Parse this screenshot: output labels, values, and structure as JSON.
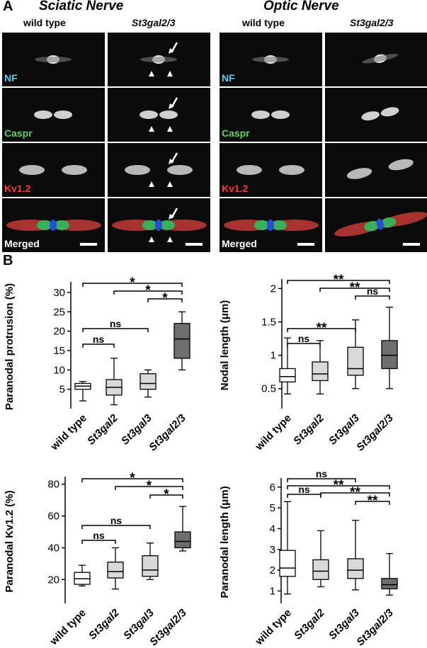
{
  "panel_a": {
    "letter": "A",
    "sciatic_title": "Sciatic Nerve",
    "optic_title": "Optic Nerve",
    "columns": [
      "wild type",
      "St3gal2/3",
      "wild type",
      "St3gal2/3"
    ],
    "channels": [
      {
        "label": "NF",
        "color": "#5ec8ee"
      },
      {
        "label": "Caspr",
        "color": "#5fd35f"
      },
      {
        "label": "Kv1.2",
        "color": "#ff3b2f"
      },
      {
        "label": "Merged",
        "color": "#ffffff"
      }
    ]
  },
  "panel_b": {
    "letter": "B"
  },
  "chart_data": [
    {
      "type": "box",
      "ylabel": "Paranodal protrusion (%)",
      "ylim": [
        0,
        32
      ],
      "yticks": [
        5,
        10,
        15,
        20,
        25,
        30
      ],
      "categories": [
        "wild type",
        "St3gal2",
        "St3gal3",
        "St3gal2/3"
      ],
      "fills": [
        "#ffffff",
        "#d9d9d9",
        "#d9d9d9",
        "#6e6e6e"
      ],
      "boxes": [
        {
          "min": 2,
          "q1": 5,
          "median": 5.8,
          "q3": 6.5,
          "max": 7
        },
        {
          "min": 1,
          "q1": 3.5,
          "median": 5.5,
          "q3": 7.5,
          "max": 13
        },
        {
          "min": 3,
          "q1": 5,
          "median": 6.5,
          "q3": 9,
          "max": 10
        },
        {
          "min": 10,
          "q1": 13,
          "median": 18,
          "q3": 22,
          "max": 25
        }
      ],
      "comparisons": [
        {
          "from": 0,
          "to": 3,
          "label": "*"
        },
        {
          "from": 1,
          "to": 3,
          "label": "*"
        },
        {
          "from": 2,
          "to": 3,
          "label": "*"
        },
        {
          "from": 0,
          "to": 2,
          "label": "ns"
        },
        {
          "from": 0,
          "to": 1,
          "label": "ns"
        }
      ]
    },
    {
      "type": "box",
      "ylabel": "Nodal length (μm)",
      "ylim": [
        0.2,
        2.1
      ],
      "yticks": [
        0.5,
        1,
        1.5,
        2
      ],
      "categories": [
        "wild type",
        "St3gal2",
        "St3gal3",
        "St3gal2/3"
      ],
      "fills": [
        "#ffffff",
        "#d9d9d9",
        "#d9d9d9",
        "#6e6e6e"
      ],
      "boxes": [
        {
          "min": 0.42,
          "q1": 0.6,
          "median": 0.68,
          "q3": 0.8,
          "max": 1.26
        },
        {
          "min": 0.42,
          "q1": 0.62,
          "median": 0.72,
          "q3": 0.9,
          "max": 1.22
        },
        {
          "min": 0.5,
          "q1": 0.7,
          "median": 0.8,
          "q3": 1.12,
          "max": 1.53
        },
        {
          "min": 0.5,
          "q1": 0.8,
          "median": 1.0,
          "q3": 1.22,
          "max": 1.72
        }
      ],
      "comparisons": [
        {
          "from": 0,
          "to": 3,
          "label": "**"
        },
        {
          "from": 1,
          "to": 3,
          "label": "**"
        },
        {
          "from": 2,
          "to": 3,
          "label": "ns"
        },
        {
          "from": 0,
          "to": 2,
          "label": "**"
        },
        {
          "from": 0,
          "to": 1,
          "label": "ns"
        }
      ]
    },
    {
      "type": "box",
      "ylabel": "Paranodal Kv1.2 (%)",
      "ylim": [
        5,
        83
      ],
      "yticks": [
        20,
        40,
        60,
        80
      ],
      "categories": [
        "wild type",
        "St3gal2",
        "St3gal3",
        "St3gal2/3"
      ],
      "fills": [
        "#ffffff",
        "#d9d9d9",
        "#d9d9d9",
        "#6e6e6e"
      ],
      "boxes": [
        {
          "min": 16,
          "q1": 17,
          "median": 20.5,
          "q3": 24.5,
          "max": 29
        },
        {
          "min": 14,
          "q1": 21,
          "median": 25,
          "q3": 31,
          "max": 40
        },
        {
          "min": 20,
          "q1": 22,
          "median": 26,
          "q3": 35,
          "max": 43
        },
        {
          "min": 38,
          "q1": 40,
          "median": 44,
          "q3": 50,
          "max": 66
        }
      ],
      "comparisons": [
        {
          "from": 0,
          "to": 3,
          "label": "*"
        },
        {
          "from": 1,
          "to": 3,
          "label": "*"
        },
        {
          "from": 2,
          "to": 3,
          "label": "*"
        },
        {
          "from": 0,
          "to": 2,
          "label": "ns"
        },
        {
          "from": 0,
          "to": 1,
          "label": "ns"
        }
      ]
    },
    {
      "type": "box",
      "ylabel": "Paranodal length (μm)",
      "ylim": [
        0.4,
        6.3
      ],
      "yticks": [
        1,
        2,
        3,
        4,
        5,
        6
      ],
      "categories": [
        "wild type",
        "St3gal2",
        "St3gal3",
        "St3gal2/3"
      ],
      "fills": [
        "#ffffff",
        "#d9d9d9",
        "#d9d9d9",
        "#6e6e6e"
      ],
      "boxes": [
        {
          "min": 0.85,
          "q1": 1.7,
          "median": 2.1,
          "q3": 2.95,
          "max": 5.3
        },
        {
          "min": 1.2,
          "q1": 1.55,
          "median": 1.95,
          "q3": 2.5,
          "max": 3.9
        },
        {
          "min": 1.05,
          "q1": 1.6,
          "median": 2.0,
          "q3": 2.55,
          "max": 4.4
        },
        {
          "min": 0.8,
          "q1": 1.1,
          "median": 1.3,
          "q3": 1.6,
          "max": 2.8
        }
      ],
      "comparisons": [
        {
          "from": 0,
          "to": 2,
          "label": "ns"
        },
        {
          "from": 0,
          "to": 1,
          "label": "ns"
        },
        {
          "from": 0,
          "to": 3,
          "label": "**"
        },
        {
          "from": 1,
          "to": 3,
          "label": "**"
        },
        {
          "from": 2,
          "to": 3,
          "label": "**"
        }
      ]
    }
  ]
}
